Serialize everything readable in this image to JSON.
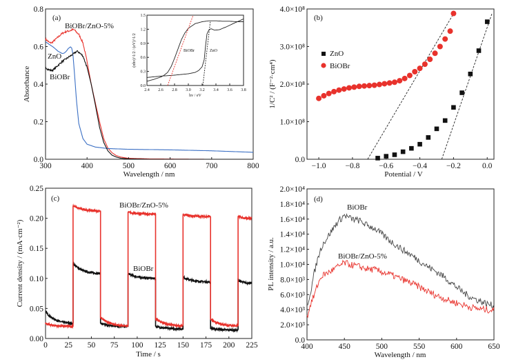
{
  "chart_data": [
    {
      "id": "a",
      "type": "line",
      "panel_label": "(a)",
      "xlabel": "Wavelength / nm",
      "ylabel": "Absorbance",
      "xlim": [
        300,
        800
      ],
      "ylim": [
        0.0,
        0.8
      ],
      "xticks": [
        300,
        400,
        500,
        600,
        700,
        800
      ],
      "yticks": [
        "0.0",
        "0.2",
        "0.4",
        "0.6",
        "0.8"
      ],
      "ytick_values": [
        0.0,
        0.2,
        0.4,
        0.6,
        0.8
      ],
      "annotations": [
        "BiOBr/ZnO-5%",
        "ZnO",
        "BiOBr"
      ],
      "series": [
        {
          "name": "BiOBr/ZnO-5%",
          "color": "#e8322c",
          "x": [
            300,
            305,
            310,
            315,
            320,
            330,
            340,
            350,
            360,
            365,
            370,
            375,
            380,
            390,
            400,
            410,
            420,
            430,
            440,
            450,
            460,
            470,
            480,
            500,
            550,
            600,
            700,
            800
          ],
          "y": [
            0.64,
            0.63,
            0.62,
            0.62,
            0.63,
            0.65,
            0.67,
            0.68,
            0.685,
            0.69,
            0.688,
            0.675,
            0.665,
            0.62,
            0.52,
            0.4,
            0.3,
            0.2,
            0.11,
            0.06,
            0.035,
            0.02,
            0.012,
            0.005,
            0.002,
            0.001,
            0.0,
            0.0
          ]
        },
        {
          "name": "ZnO",
          "color": "#3a6fc4",
          "x": [
            300,
            310,
            320,
            330,
            340,
            345,
            350,
            355,
            360,
            363,
            366,
            370,
            375,
            380,
            390,
            400,
            420,
            450,
            500,
            600,
            700,
            800
          ],
          "y": [
            0.625,
            0.61,
            0.595,
            0.575,
            0.563,
            0.565,
            0.575,
            0.59,
            0.598,
            0.592,
            0.56,
            0.45,
            0.3,
            0.19,
            0.11,
            0.08,
            0.065,
            0.057,
            0.053,
            0.05,
            0.045,
            0.037
          ]
        },
        {
          "name": "BiOBr",
          "color": "#111111",
          "x": [
            300,
            305,
            310,
            315,
            320,
            330,
            340,
            350,
            360,
            370,
            375,
            380,
            390,
            400,
            410,
            420,
            430,
            440,
            450,
            460,
            470,
            480,
            500,
            550,
            600,
            800
          ],
          "y": [
            0.49,
            0.48,
            0.475,
            0.472,
            0.478,
            0.5,
            0.52,
            0.535,
            0.55,
            0.565,
            0.575,
            0.57,
            0.55,
            0.49,
            0.4,
            0.29,
            0.17,
            0.09,
            0.045,
            0.022,
            0.012,
            0.006,
            0.002,
            0.0,
            0.0,
            0.0
          ]
        }
      ],
      "inset": {
        "type": "line",
        "xlabel": "hv / eV",
        "ylabel": "(αhν)^1/2 / (eV)^1/2",
        "xlim": [
          2.4,
          3.8
        ],
        "ylim": [
          0.0,
          1.5
        ],
        "xticks": [
          "2.4",
          "2.6",
          "2.8",
          "3.0",
          "3.2",
          "3.4",
          "3.6",
          "3.8"
        ],
        "xtick_values": [
          2.4,
          2.6,
          2.8,
          3.0,
          3.2,
          3.4,
          3.6,
          3.8
        ],
        "yticks": [
          "0.0",
          "0.3",
          "0.6",
          "0.9",
          "1.2",
          "1.5"
        ],
        "ytick_values": [
          0.0,
          0.3,
          0.6,
          0.9,
          1.2,
          1.5
        ],
        "annotations": [
          "BiOBr",
          "ZnO"
        ],
        "series": [
          {
            "name": "BiOBr",
            "color": "#222222",
            "x": [
              2.4,
              2.5,
              2.6,
              2.65,
              2.7,
              2.75,
              2.8,
              2.85,
              2.9,
              2.95,
              3.0,
              3.1,
              3.2,
              3.3,
              3.4,
              3.5,
              3.6,
              3.7,
              3.8
            ],
            "y": [
              0.09,
              0.13,
              0.18,
              0.22,
              0.28,
              0.4,
              0.58,
              0.78,
              0.98,
              1.12,
              1.22,
              1.32,
              1.36,
              1.38,
              1.38,
              1.37,
              1.37,
              1.36,
              1.36
            ]
          },
          {
            "name": "ZnO",
            "color": "#222222",
            "x": [
              2.4,
              2.6,
              2.8,
              3.0,
              3.1,
              3.15,
              3.2,
              3.23,
              3.25,
              3.27,
              3.3,
              3.33,
              3.38,
              3.45,
              3.55,
              3.65,
              3.8
            ],
            "y": [
              0.17,
              0.2,
              0.22,
              0.25,
              0.28,
              0.32,
              0.4,
              0.55,
              0.85,
              1.1,
              1.19,
              1.21,
              1.18,
              1.19,
              1.25,
              1.32,
              1.42
            ]
          },
          {
            "name": "BiOBr fit",
            "color": "#e8322c",
            "dashed": true,
            "x": [
              2.7,
              3.07
            ],
            "y": [
              0.0,
              1.5
            ]
          },
          {
            "name": "ZnO fit",
            "color": "#222222",
            "dashed": true,
            "x": [
              3.21,
              3.32
            ],
            "y": [
              0.0,
              1.38
            ]
          }
        ]
      }
    },
    {
      "id": "b",
      "type": "scatter",
      "panel_label": "(b)",
      "xlabel": "Potential / V",
      "ylabel": "1/C² / (F⁻²·cm⁴)",
      "xlim": [
        -1.07,
        0.04
      ],
      "ylim": [
        0,
        400000000.0
      ],
      "xticks": [
        "−1.0",
        "−0.8",
        "−0.6",
        "−0.4",
        "−0.2",
        "0.0"
      ],
      "xtick_values": [
        -1.0,
        -0.8,
        -0.6,
        -0.4,
        -0.2,
        0.0
      ],
      "yticks": [
        "0.0",
        "1.0×10⁸",
        "2.0×10⁸",
        "3.0×10⁸",
        "4.0×10⁸"
      ],
      "ytick_values": [
        0,
        100000000.0,
        200000000.0,
        300000000.0,
        400000000.0
      ],
      "legend": {
        "position": "upper-left",
        "entries": [
          "ZnO",
          "BiOBr"
        ]
      },
      "series": [
        {
          "name": "ZnO",
          "marker": "square",
          "color": "#111111",
          "x": [
            -0.65,
            -0.6,
            -0.55,
            -0.5,
            -0.45,
            -0.4,
            -0.35,
            -0.3,
            -0.25,
            -0.2,
            -0.15,
            -0.1,
            -0.05,
            0.0
          ],
          "y": [
            3000000.0,
            8000000.0,
            12000000.0,
            20000000.0,
            29000000.0,
            40000000.0,
            58000000.0,
            81000000.0,
            103000000.0,
            138000000.0,
            177000000.0,
            227000000.0,
            289000000.0,
            366000000.0
          ]
        },
        {
          "name": "BiOBr",
          "marker": "circle",
          "color": "#e8322c",
          "x": [
            -1.0,
            -0.97,
            -0.94,
            -0.91,
            -0.88,
            -0.85,
            -0.82,
            -0.79,
            -0.76,
            -0.73,
            -0.7,
            -0.67,
            -0.64,
            -0.61,
            -0.58,
            -0.55,
            -0.52,
            -0.49,
            -0.46,
            -0.43,
            -0.4,
            -0.37,
            -0.34,
            -0.31,
            -0.28,
            -0.25,
            -0.22,
            -0.2
          ],
          "y": [
            162000000.0,
            169000000.0,
            175000000.0,
            180000000.0,
            184000000.0,
            187000000.0,
            190000000.0,
            192000000.0,
            194000000.0,
            195000000.0,
            196000000.0,
            197000000.0,
            199000000.0,
            201000000.0,
            203000000.0,
            205000000.0,
            209000000.0,
            215000000.0,
            223000000.0,
            233000000.0,
            242000000.0,
            253000000.0,
            266000000.0,
            282000000.0,
            300000000.0,
            320000000.0,
            341000000.0,
            388000000.0
          ]
        },
        {
          "name": "BiOBr fit",
          "dashed": true,
          "color": "#222222",
          "x": [
            -0.71,
            -0.19
          ],
          "y": [
            0,
            395000000.0
          ]
        },
        {
          "name": "ZnO fit",
          "dashed": true,
          "color": "#222222",
          "x": [
            -0.27,
            0.03
          ],
          "y": [
            0,
            390000000.0
          ]
        }
      ]
    },
    {
      "id": "c",
      "type": "line",
      "panel_label": "(c)",
      "xlabel": "Time / s",
      "ylabel": "Current density / (mA·cm⁻²)",
      "xlim": [
        0,
        225
      ],
      "ylim": [
        0.0,
        0.25
      ],
      "xticks": [
        "0",
        "25",
        "50",
        "75",
        "100",
        "125",
        "150",
        "175",
        "200",
        "225"
      ],
      "xtick_values": [
        0,
        25,
        50,
        75,
        100,
        125,
        150,
        175,
        200,
        225
      ],
      "yticks": [
        "0.00",
        "0.05",
        "0.10",
        "0.15",
        "0.20",
        "0.25"
      ],
      "ytick_values": [
        0.0,
        0.05,
        0.1,
        0.15,
        0.2,
        0.25
      ],
      "annotations": [
        "BiOBr/ZnO-5%",
        "BiOBr"
      ],
      "light_on_off_period_s": 30,
      "series": [
        {
          "name": "BiOBr/ZnO-5%",
          "color": "#e8322c",
          "segments": [
            {
              "t": [
                0,
                30
              ],
              "start": 0.025,
              "end": 0.02
            },
            {
              "t": [
                30,
                60
              ],
              "start": 0.221,
              "end": 0.212
            },
            {
              "t": [
                60,
                90
              ],
              "start": 0.035,
              "end": 0.021
            },
            {
              "t": [
                90,
                120
              ],
              "start": 0.21,
              "end": 0.207
            },
            {
              "t": [
                120,
                150
              ],
              "start": 0.033,
              "end": 0.021
            },
            {
              "t": [
                150,
                180
              ],
              "start": 0.206,
              "end": 0.203
            },
            {
              "t": [
                180,
                210
              ],
              "start": 0.032,
              "end": 0.021
            },
            {
              "t": [
                210,
                225
              ],
              "start": 0.203,
              "end": 0.2
            }
          ]
        },
        {
          "name": "BiOBr",
          "color": "#111111",
          "segments": [
            {
              "t": [
                0,
                30
              ],
              "start": 0.045,
              "end": 0.025
            },
            {
              "t": [
                30,
                60
              ],
              "start": 0.125,
              "end": 0.108
            },
            {
              "t": [
                60,
                90
              ],
              "start": 0.025,
              "end": 0.02
            },
            {
              "t": [
                90,
                120
              ],
              "start": 0.108,
              "end": 0.1
            },
            {
              "t": [
                120,
                150
              ],
              "start": 0.02,
              "end": 0.016
            },
            {
              "t": [
                150,
                180
              ],
              "start": 0.102,
              "end": 0.094
            },
            {
              "t": [
                180,
                210
              ],
              "start": 0.017,
              "end": 0.014
            },
            {
              "t": [
                210,
                225
              ],
              "start": 0.097,
              "end": 0.092
            }
          ]
        }
      ]
    },
    {
      "id": "d",
      "type": "line",
      "panel_label": "(d)",
      "xlabel": "Wavelength / nm",
      "ylabel": "PL intensity / a.u.",
      "xlim": [
        400,
        650
      ],
      "ylim": [
        0,
        20000.0
      ],
      "xticks": [
        "400",
        "450",
        "500",
        "550",
        "600",
        "650"
      ],
      "xtick_values": [
        400,
        450,
        500,
        550,
        600,
        650
      ],
      "yticks": [
        "0.0",
        "2.0×10³",
        "4.0×10³",
        "6.0×10³",
        "8.0×10³",
        "1.0×10⁴",
        "1.2×10⁴",
        "1.4×10⁴",
        "1.6×10⁴",
        "1.8×10⁴",
        "2.0×10⁴"
      ],
      "ytick_values": [
        0,
        2000,
        4000,
        6000,
        8000,
        10000,
        12000,
        14000,
        16000,
        18000,
        20000
      ],
      "annotations": [
        "BiOBr",
        "BiOBr/ZnO-5%"
      ],
      "series": [
        {
          "name": "BiOBr",
          "color": "#444444",
          "x": [
            400,
            405,
            410,
            415,
            420,
            430,
            440,
            450,
            460,
            470,
            480,
            490,
            500,
            510,
            520,
            530,
            540,
            550,
            560,
            570,
            580,
            590,
            600,
            610,
            620,
            630,
            640,
            650
          ],
          "y": [
            4500,
            6500,
            9000,
            11000,
            12500,
            14000,
            15500,
            16500,
            16000,
            15800,
            15200,
            14800,
            14000,
            13200,
            12500,
            11800,
            11200,
            10500,
            9800,
            9200,
            8600,
            7800,
            7000,
            6200,
            5600,
            5200,
            4800,
            4500
          ]
        },
        {
          "name": "BiOBr/ZnO-5%",
          "color": "#e8322c",
          "x": [
            400,
            405,
            410,
            415,
            420,
            430,
            440,
            450,
            460,
            470,
            480,
            490,
            500,
            510,
            520,
            530,
            540,
            550,
            560,
            570,
            580,
            590,
            600,
            610,
            620,
            630,
            640,
            650
          ],
          "y": [
            3000,
            4800,
            6000,
            7500,
            8500,
            9000,
            9600,
            10200,
            9900,
            9700,
            9400,
            9300,
            9000,
            8700,
            8300,
            7900,
            7500,
            7000,
            6500,
            6000,
            5600,
            5200,
            4900,
            4600,
            4300,
            4100,
            4000,
            3900
          ]
        }
      ]
    }
  ]
}
